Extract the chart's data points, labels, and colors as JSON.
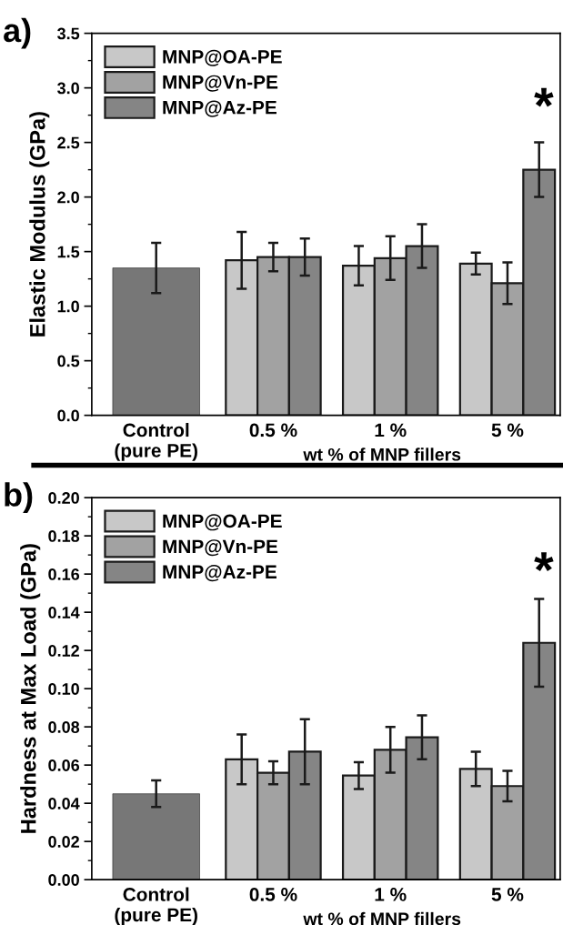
{
  "chart_data": [
    {
      "type": "bar",
      "title": "a)",
      "categories": [
        "Control\n(pure PE)",
        "0.5 %",
        "1 %",
        "5 %"
      ],
      "xlabel": "wt % of MNP fillers",
      "ylabel": "Elastic Modulus (GPa)",
      "series": [
        {
          "color": "#777777",
          "values": [
            1.35,
            null,
            null,
            null
          ],
          "errors": [
            0.23,
            null,
            null,
            null
          ]
        },
        {
          "name": "MNP@OA-PE",
          "color": "#c8c8c8",
          "values": [
            null,
            1.42,
            1.37,
            1.39
          ],
          "errors": [
            null,
            0.26,
            0.18,
            0.1
          ]
        },
        {
          "name": "MNP@Vn-PE",
          "color": "#a2a2a2",
          "values": [
            null,
            1.45,
            1.44,
            1.21
          ],
          "errors": [
            null,
            0.13,
            0.2,
            0.19
          ]
        },
        {
          "name": "MNP@Az-PE",
          "color": "#858585",
          "values": [
            null,
            1.45,
            1.55,
            2.25
          ],
          "errors": [
            null,
            0.17,
            0.2,
            0.25
          ]
        }
      ],
      "ylim": [
        0,
        3.5
      ],
      "yticks": [
        {
          "value": 0,
          "label": "0.0"
        },
        0.5,
        {
          "value": 1,
          "label": "1.0"
        },
        1.5,
        {
          "value": 2,
          "label": "2.0"
        },
        2.5,
        {
          "value": 3,
          "label": "3.0"
        },
        3.5
      ],
      "annotations": [
        "*"
      ],
      "legend": "top left",
      "grid": false
    },
    {
      "type": "bar",
      "title": "b)",
      "categories": [
        "Control\n(pure PE)",
        "0.5 %",
        "1 %",
        "5 %"
      ],
      "xlabel": "wt % of MNP fillers",
      "ylabel": "Hardness at Max Load (GPa)",
      "series": [
        {
          "color": "#777777",
          "values": [
            0.045,
            null,
            null,
            null
          ],
          "errors": [
            0.007,
            null,
            null,
            null
          ]
        },
        {
          "name": "MNP@OA-PE",
          "color": "#c8c8c8",
          "values": [
            null,
            0.063,
            0.0545,
            0.058
          ],
          "errors": [
            null,
            0.013,
            0.007,
            0.009
          ]
        },
        {
          "name": "MNP@Vn-PE",
          "color": "#a2a2a2",
          "values": [
            null,
            0.056,
            0.068,
            0.049
          ],
          "errors": [
            null,
            0.006,
            0.012,
            0.008
          ]
        },
        {
          "name": "MNP@Az-PE",
          "color": "#858585",
          "values": [
            null,
            0.067,
            0.0745,
            0.124
          ],
          "errors": [
            null,
            0.017,
            0.0115,
            0.023
          ]
        }
      ],
      "ylim": [
        0,
        0.2
      ],
      "yticks": [
        {
          "value": 0,
          "label": "0.00"
        },
        {
          "value": 0.02,
          "label": "0.02"
        },
        {
          "value": 0.04,
          "label": "0.04"
        },
        {
          "value": 0.06,
          "label": "0.06"
        },
        {
          "value": 0.08,
          "label": "0.08"
        },
        {
          "value": 0.1,
          "label": "0.10"
        },
        {
          "value": 0.12,
          "label": "0.12"
        },
        {
          "value": 0.14,
          "label": "0.14"
        },
        {
          "value": 0.16,
          "label": "0.16"
        },
        {
          "value": 0.18,
          "label": "0.18"
        },
        {
          "value": 0.2,
          "label": "0.20"
        }
      ],
      "annotations": [
        "*"
      ],
      "legend": "top left",
      "grid": false
    }
  ]
}
